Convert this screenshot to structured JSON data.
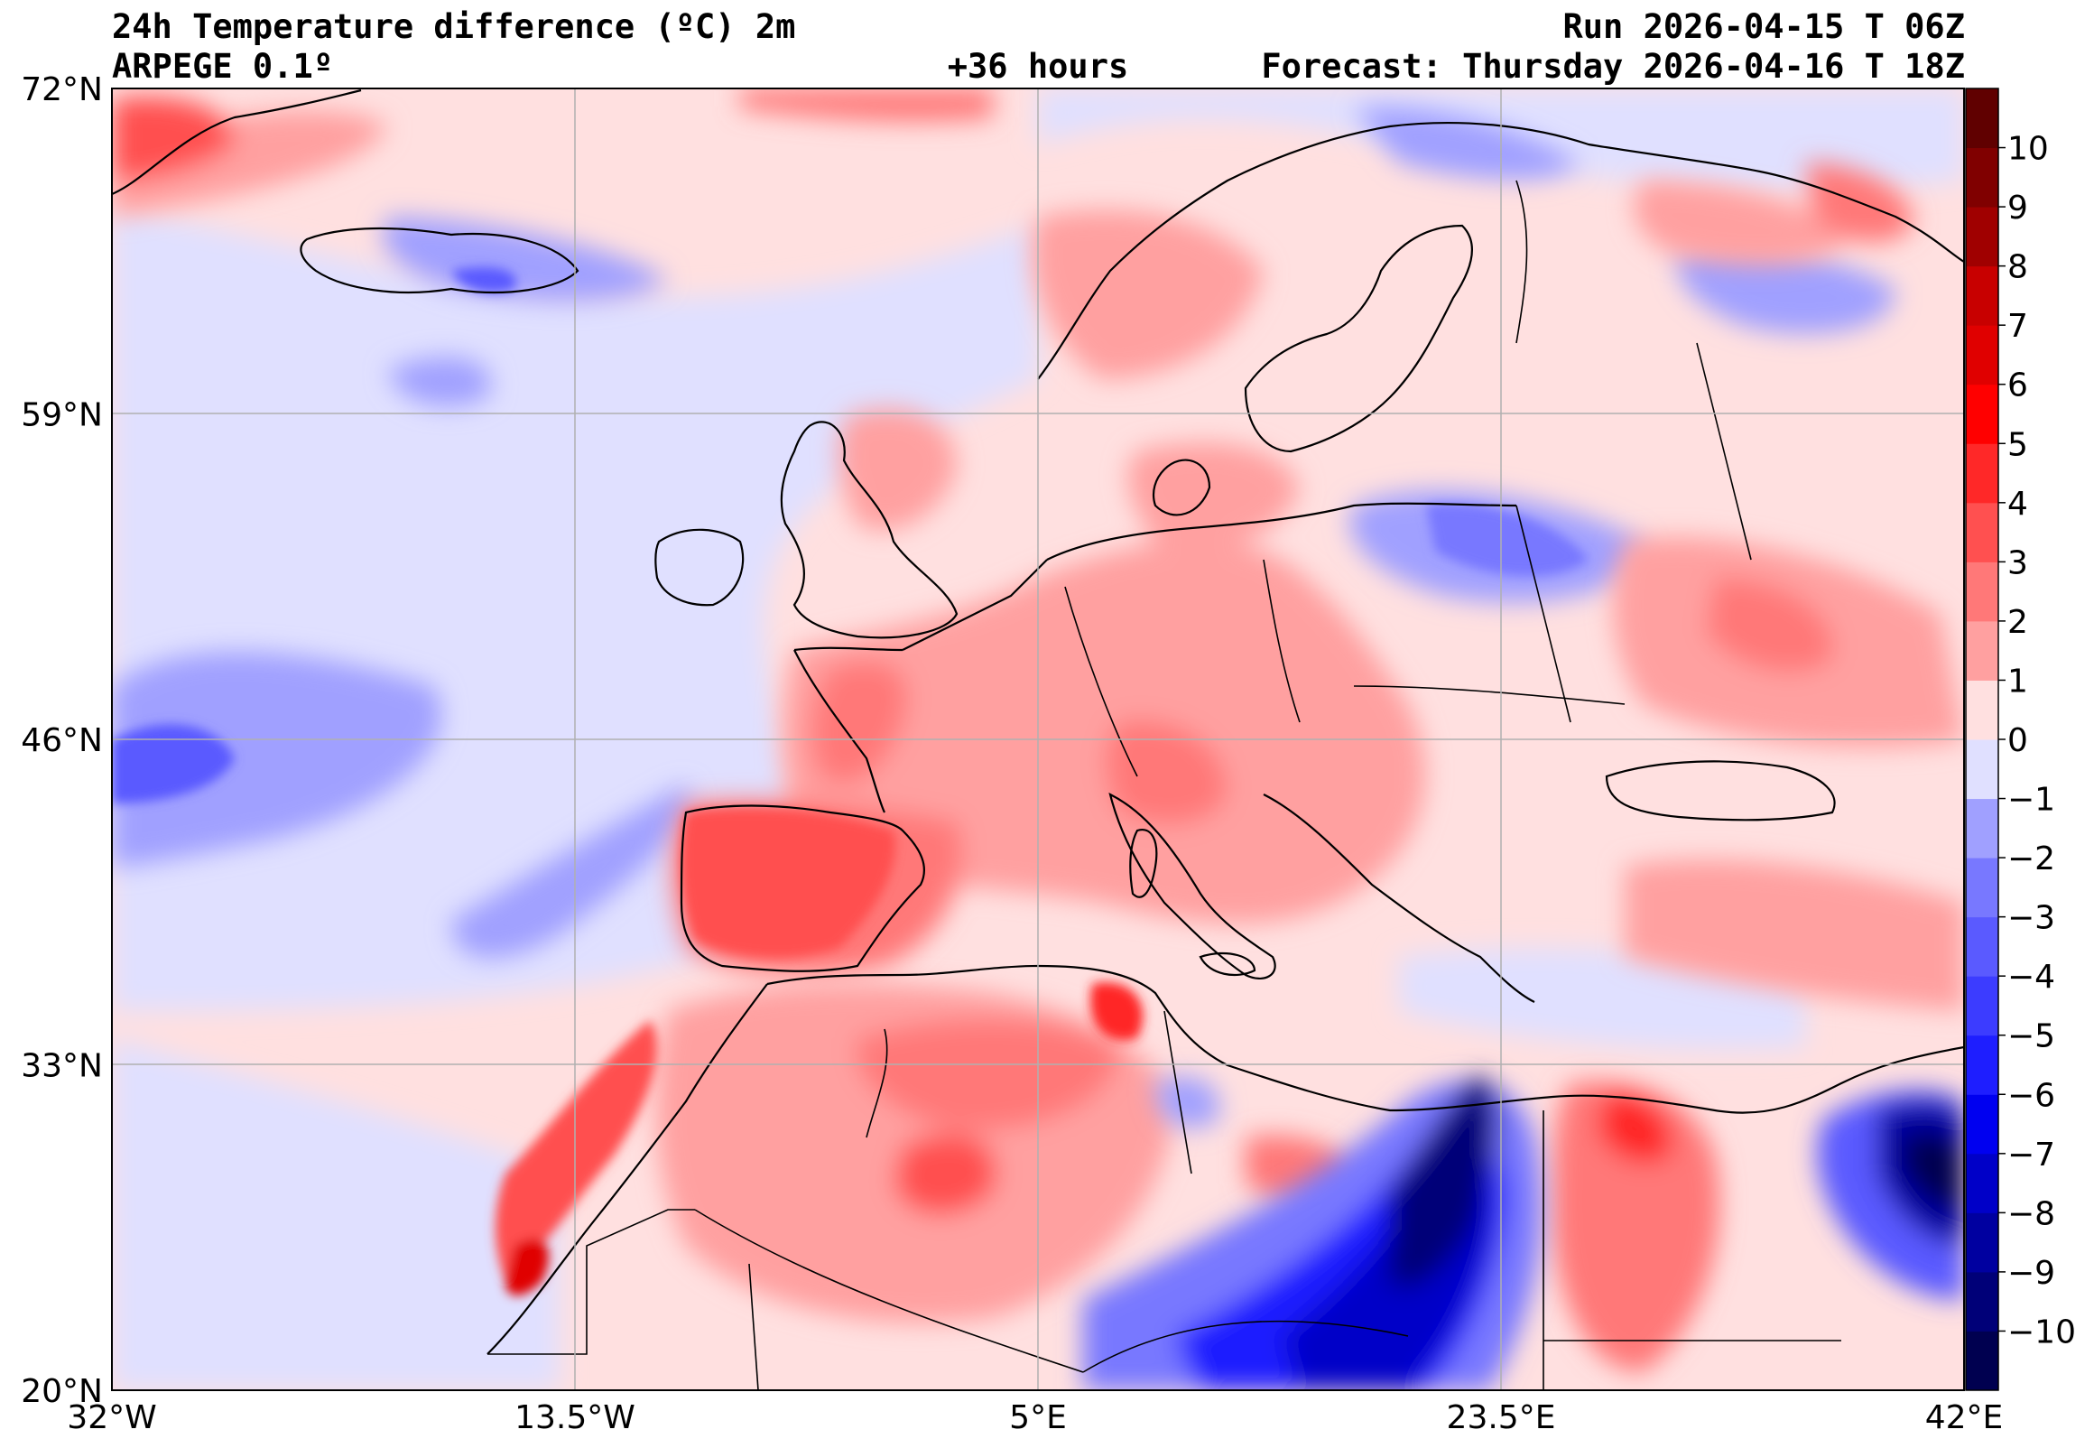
{
  "header": {
    "title_left": "24h Temperature difference (ºC) 2m",
    "model": "ARPEGE 0.1º",
    "lead_time": "+36 hours",
    "run": "Run 2026-04-15 T 06Z",
    "forecast": "Forecast: Thursday 2026-04-16 T 18Z"
  },
  "map": {
    "region": "Europe / North Africa",
    "lon_range": [
      -32,
      42
    ],
    "lat_range": [
      20,
      72
    ],
    "lat_ticks": [
      "72°N",
      "59°N",
      "46°N",
      "33°N",
      "20°N"
    ],
    "lon_ticks": [
      "32°W",
      "13.5°W",
      "5°E",
      "23.5°E",
      "42°E"
    ],
    "grid": true
  },
  "colorbar": {
    "levels": [
      -11,
      -10,
      -9,
      -8,
      -7,
      -6,
      -5,
      -4,
      -3,
      -2,
      -1,
      0,
      1,
      2,
      3,
      4,
      5,
      6,
      7,
      8,
      9,
      10,
      11
    ],
    "tick_labels": [
      "−10",
      "−9",
      "−8",
      "−7",
      "−6",
      "−5",
      "−4",
      "−3",
      "−2",
      "−1",
      "0",
      "1",
      "2",
      "3",
      "4",
      "5",
      "6",
      "7",
      "8",
      "9",
      "10"
    ],
    "colors": [
      "#000050",
      "#000078",
      "#0000a0",
      "#0000c8",
      "#0000f0",
      "#1e1eff",
      "#3c3cff",
      "#5a5aff",
      "#7878ff",
      "#a0a0ff",
      "#e0e0ff",
      "#ffe0e0",
      "#ffa0a0",
      "#ff7878",
      "#ff5050",
      "#ff2828",
      "#ff0000",
      "#e00000",
      "#c80000",
      "#a00000",
      "#800000",
      "#600000"
    ]
  }
}
